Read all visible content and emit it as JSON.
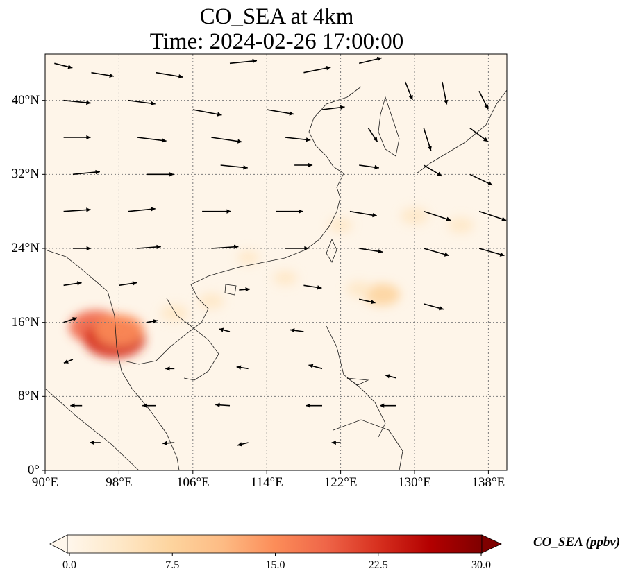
{
  "title": {
    "line1": "CO_SEA at 4km",
    "line2": "Time: 2024-02-26 17:00:00"
  },
  "map": {
    "extent": {
      "lon_min": 90,
      "lon_max": 140,
      "lat_min": 0,
      "lat_max": 45
    },
    "gridlines": "dotted",
    "lon_ticks": [
      {
        "value": 90,
        "label": "90°E"
      },
      {
        "value": 98,
        "label": "98°E"
      },
      {
        "value": 106,
        "label": "106°E"
      },
      {
        "value": 114,
        "label": "114°E"
      },
      {
        "value": 122,
        "label": "122°E"
      },
      {
        "value": 130,
        "label": "130°E"
      },
      {
        "value": 138,
        "label": "138°E"
      }
    ],
    "lat_ticks": [
      {
        "value": 0,
        "label": "0°"
      },
      {
        "value": 8,
        "label": "8°N"
      },
      {
        "value": 16,
        "label": "16°N"
      },
      {
        "value": 24,
        "label": "24°N"
      },
      {
        "value": 32,
        "label": "32°N"
      },
      {
        "value": 40,
        "label": "40°N"
      }
    ]
  },
  "colorbar": {
    "label": "CO_SEA (ppbv)",
    "cmap": "OrRd",
    "min": 0.0,
    "max": 30.0,
    "extend": "both",
    "ticks": [
      "0.0",
      "7.5",
      "15.0",
      "22.5",
      "30.0"
    ],
    "colors": [
      "#fff7ec",
      "#fee8c8",
      "#fdd49e",
      "#fdbb84",
      "#fc8d59",
      "#ef6548",
      "#d7301f",
      "#b30000",
      "#7f0000"
    ]
  },
  "chart_data": {
    "type": "heatmap",
    "variable": "CO_SEA",
    "units": "ppbv",
    "plumes": [
      {
        "lon": 95.5,
        "lat": 15.5,
        "value": 18
      },
      {
        "lon": 97.5,
        "lat": 14.2,
        "value": 22
      },
      {
        "lon": 98.0,
        "lat": 15.2,
        "value": 16
      },
      {
        "lon": 104.0,
        "lat": 17.0,
        "value": 5
      },
      {
        "lon": 108.0,
        "lat": 18.3,
        "value": 4
      },
      {
        "lon": 116.0,
        "lat": 20.8,
        "value": 3
      },
      {
        "lon": 126.5,
        "lat": 19.0,
        "value": 9
      },
      {
        "lon": 124.0,
        "lat": 19.6,
        "value": 4
      },
      {
        "lon": 130.0,
        "lat": 27.5,
        "value": 5
      },
      {
        "lon": 135.0,
        "lat": 26.5,
        "value": 4
      },
      {
        "lon": 122.0,
        "lat": 26.5,
        "value": 3
      },
      {
        "lon": 112.0,
        "lat": 23.0,
        "value": 2
      }
    ],
    "wind_vectors": [
      {
        "lon": 91,
        "lat": 44,
        "u": 2,
        "v": -0.5
      },
      {
        "lon": 95,
        "lat": 43,
        "u": 2.5,
        "v": -0.4
      },
      {
        "lon": 102,
        "lat": 43,
        "u": 3,
        "v": -0.5
      },
      {
        "lon": 110,
        "lat": 44,
        "u": 3,
        "v": 0.3
      },
      {
        "lon": 118,
        "lat": 43,
        "u": 3,
        "v": 0.6
      },
      {
        "lon": 124,
        "lat": 44,
        "u": 2.5,
        "v": 0.6
      },
      {
        "lon": 92,
        "lat": 40,
        "u": 3,
        "v": -0.3
      },
      {
        "lon": 99,
        "lat": 40,
        "u": 3,
        "v": -0.4
      },
      {
        "lon": 106,
        "lat": 39,
        "u": 3.2,
        "v": -0.6
      },
      {
        "lon": 114,
        "lat": 39,
        "u": 3,
        "v": -0.5
      },
      {
        "lon": 120,
        "lat": 39,
        "u": 2.5,
        "v": 0.3
      },
      {
        "lon": 129,
        "lat": 42,
        "u": 0.8,
        "v": -2
      },
      {
        "lon": 133,
        "lat": 42,
        "u": 0.5,
        "v": -2.5
      },
      {
        "lon": 137,
        "lat": 41,
        "u": 1,
        "v": -2
      },
      {
        "lon": 92,
        "lat": 36,
        "u": 3,
        "v": 0
      },
      {
        "lon": 100,
        "lat": 36,
        "u": 3.2,
        "v": -0.4
      },
      {
        "lon": 108,
        "lat": 36,
        "u": 3.4,
        "v": -0.5
      },
      {
        "lon": 116,
        "lat": 36,
        "u": 2.8,
        "v": -0.3
      },
      {
        "lon": 125,
        "lat": 37,
        "u": 1,
        "v": -1.5
      },
      {
        "lon": 131,
        "lat": 37,
        "u": 0.8,
        "v": -2.5
      },
      {
        "lon": 136,
        "lat": 37,
        "u": 2,
        "v": -1.5
      },
      {
        "lon": 93,
        "lat": 32,
        "u": 3,
        "v": 0.3
      },
      {
        "lon": 101,
        "lat": 32,
        "u": 3,
        "v": 0
      },
      {
        "lon": 109,
        "lat": 33,
        "u": 3,
        "v": -0.3
      },
      {
        "lon": 117,
        "lat": 33,
        "u": 2,
        "v": 0
      },
      {
        "lon": 124,
        "lat": 33,
        "u": 2.2,
        "v": -0.3
      },
      {
        "lon": 131,
        "lat": 33,
        "u": 2,
        "v": -1.2
      },
      {
        "lon": 136,
        "lat": 32,
        "u": 2.5,
        "v": -1.2
      },
      {
        "lon": 92,
        "lat": 28,
        "u": 3,
        "v": 0.2
      },
      {
        "lon": 99,
        "lat": 28,
        "u": 3,
        "v": 0.3
      },
      {
        "lon": 107,
        "lat": 28,
        "u": 3.2,
        "v": 0
      },
      {
        "lon": 115,
        "lat": 28,
        "u": 3,
        "v": 0
      },
      {
        "lon": 123,
        "lat": 28,
        "u": 3,
        "v": -0.5
      },
      {
        "lon": 131,
        "lat": 28,
        "u": 3,
        "v": -1
      },
      {
        "lon": 137,
        "lat": 28,
        "u": 3,
        "v": -1
      },
      {
        "lon": 93,
        "lat": 24,
        "u": 2,
        "v": 0
      },
      {
        "lon": 100,
        "lat": 24,
        "u": 2.6,
        "v": 0.2
      },
      {
        "lon": 108,
        "lat": 24,
        "u": 3,
        "v": 0.2
      },
      {
        "lon": 116,
        "lat": 24,
        "u": 2.6,
        "v": 0
      },
      {
        "lon": 124,
        "lat": 24,
        "u": 2.6,
        "v": -0.4
      },
      {
        "lon": 131,
        "lat": 24,
        "u": 2.8,
        "v": -0.8
      },
      {
        "lon": 137,
        "lat": 24,
        "u": 2.8,
        "v": -0.8
      },
      {
        "lon": 92,
        "lat": 20,
        "u": 2,
        "v": 0.3
      },
      {
        "lon": 98,
        "lat": 20,
        "u": 2,
        "v": 0.3
      },
      {
        "lon": 111,
        "lat": 19.5,
        "u": 1.2,
        "v": 0.1
      },
      {
        "lon": 118,
        "lat": 20,
        "u": 2,
        "v": -0.3
      },
      {
        "lon": 124,
        "lat": 18.5,
        "u": 1.8,
        "v": -0.4
      },
      {
        "lon": 131,
        "lat": 18,
        "u": 2.2,
        "v": -0.6
      },
      {
        "lon": 92,
        "lat": 16,
        "u": 1.5,
        "v": 0.5
      },
      {
        "lon": 101,
        "lat": 16,
        "u": 1.2,
        "v": 0.2
      },
      {
        "lon": 110,
        "lat": 15,
        "u": -1.2,
        "v": 0.3
      },
      {
        "lon": 118,
        "lat": 15,
        "u": -1.5,
        "v": 0.2
      },
      {
        "lon": 93,
        "lat": 12,
        "u": -1,
        "v": -0.4
      },
      {
        "lon": 104,
        "lat": 11,
        "u": -1,
        "v": 0
      },
      {
        "lon": 112,
        "lat": 11,
        "u": -1.3,
        "v": 0.2
      },
      {
        "lon": 120,
        "lat": 11,
        "u": -1.5,
        "v": 0.4
      },
      {
        "lon": 128,
        "lat": 10,
        "u": -1.2,
        "v": 0.3
      },
      {
        "lon": 94,
        "lat": 7,
        "u": -1.3,
        "v": 0
      },
      {
        "lon": 102,
        "lat": 7,
        "u": -1.5,
        "v": 0
      },
      {
        "lon": 110,
        "lat": 7,
        "u": -1.6,
        "v": 0.1
      },
      {
        "lon": 120,
        "lat": 7,
        "u": -1.8,
        "v": 0
      },
      {
        "lon": 128,
        "lat": 7,
        "u": -1.8,
        "v": 0
      },
      {
        "lon": 96,
        "lat": 3,
        "u": -1.2,
        "v": 0
      },
      {
        "lon": 104,
        "lat": 3,
        "u": -1.3,
        "v": -0.1
      },
      {
        "lon": 112,
        "lat": 3,
        "u": -1.2,
        "v": -0.3
      },
      {
        "lon": 122,
        "lat": 3,
        "u": -1,
        "v": 0
      }
    ]
  }
}
